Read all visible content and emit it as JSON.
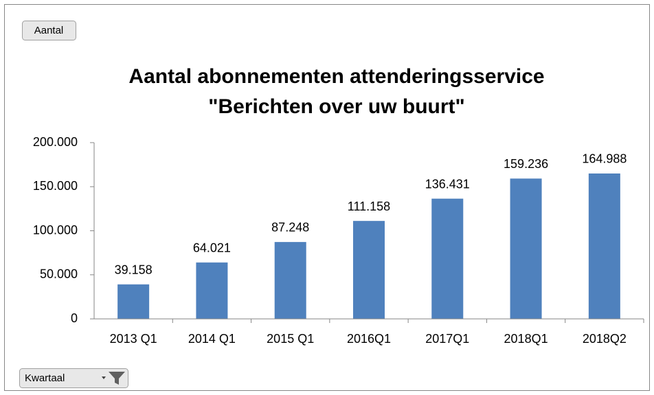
{
  "buttons": [
    "Aantal",
    "Kwartaal"
  ],
  "chart_data": {
    "type": "bar",
    "title": [
      "Aantal abonnementen attenderingsservice",
      "\"Berichten over uw buurt\""
    ],
    "categories": [
      "2013 Q1",
      "2014 Q1",
      "2015 Q1",
      "2016Q1",
      "2017Q1",
      "2018Q1",
      "2018Q2"
    ],
    "values": [
      39158,
      64021,
      87248,
      111158,
      136431,
      159236,
      164988
    ],
    "value_labels": [
      "39.158",
      "64.021",
      "87.248",
      "111.158",
      "136.431",
      "159.236",
      "164.988"
    ],
    "color": "#4f81bd",
    "ylim": [
      0,
      200000
    ],
    "yticks": [
      0,
      {
        "value": 50000,
        "label": "50.000"
      },
      {
        "value": 100000,
        "label": "100.000"
      },
      {
        "value": 150000,
        "label": "150.000"
      },
      {
        "value": 200000,
        "label": "200.000"
      }
    ],
    "grid": false
  }
}
